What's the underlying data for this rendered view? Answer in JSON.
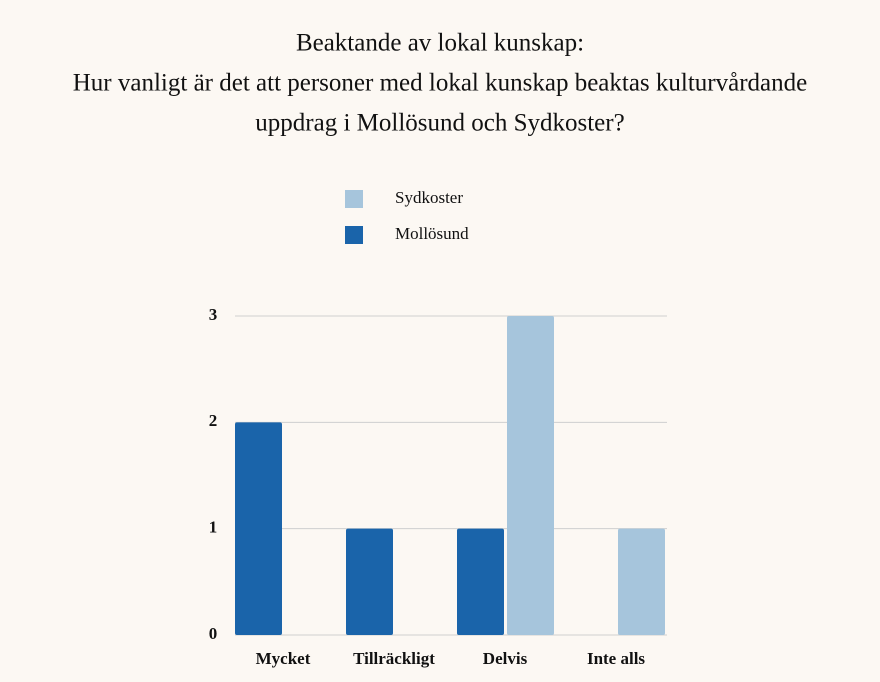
{
  "chart_data": {
    "type": "bar",
    "title": [
      "Beaktande av lokal kunskap:",
      "Hur vanligt är det att personer med lokal kunskap beaktas kulturvårdande",
      "uppdrag i Mollösund och Sydkoster?"
    ],
    "categories": [
      "Mycket",
      "Tillräckligt",
      "Delvis",
      "Inte alls"
    ],
    "series": [
      {
        "name": "Sydkoster",
        "color": "#a6c5dc",
        "values": [
          0,
          0,
          3,
          1
        ]
      },
      {
        "name": "Mollösund",
        "color": "#1a64aa",
        "values": [
          2,
          1,
          1,
          0
        ]
      }
    ],
    "ylim": [
      0,
      3
    ],
    "yticks": [
      0,
      1,
      2,
      3
    ],
    "grid": true
  }
}
